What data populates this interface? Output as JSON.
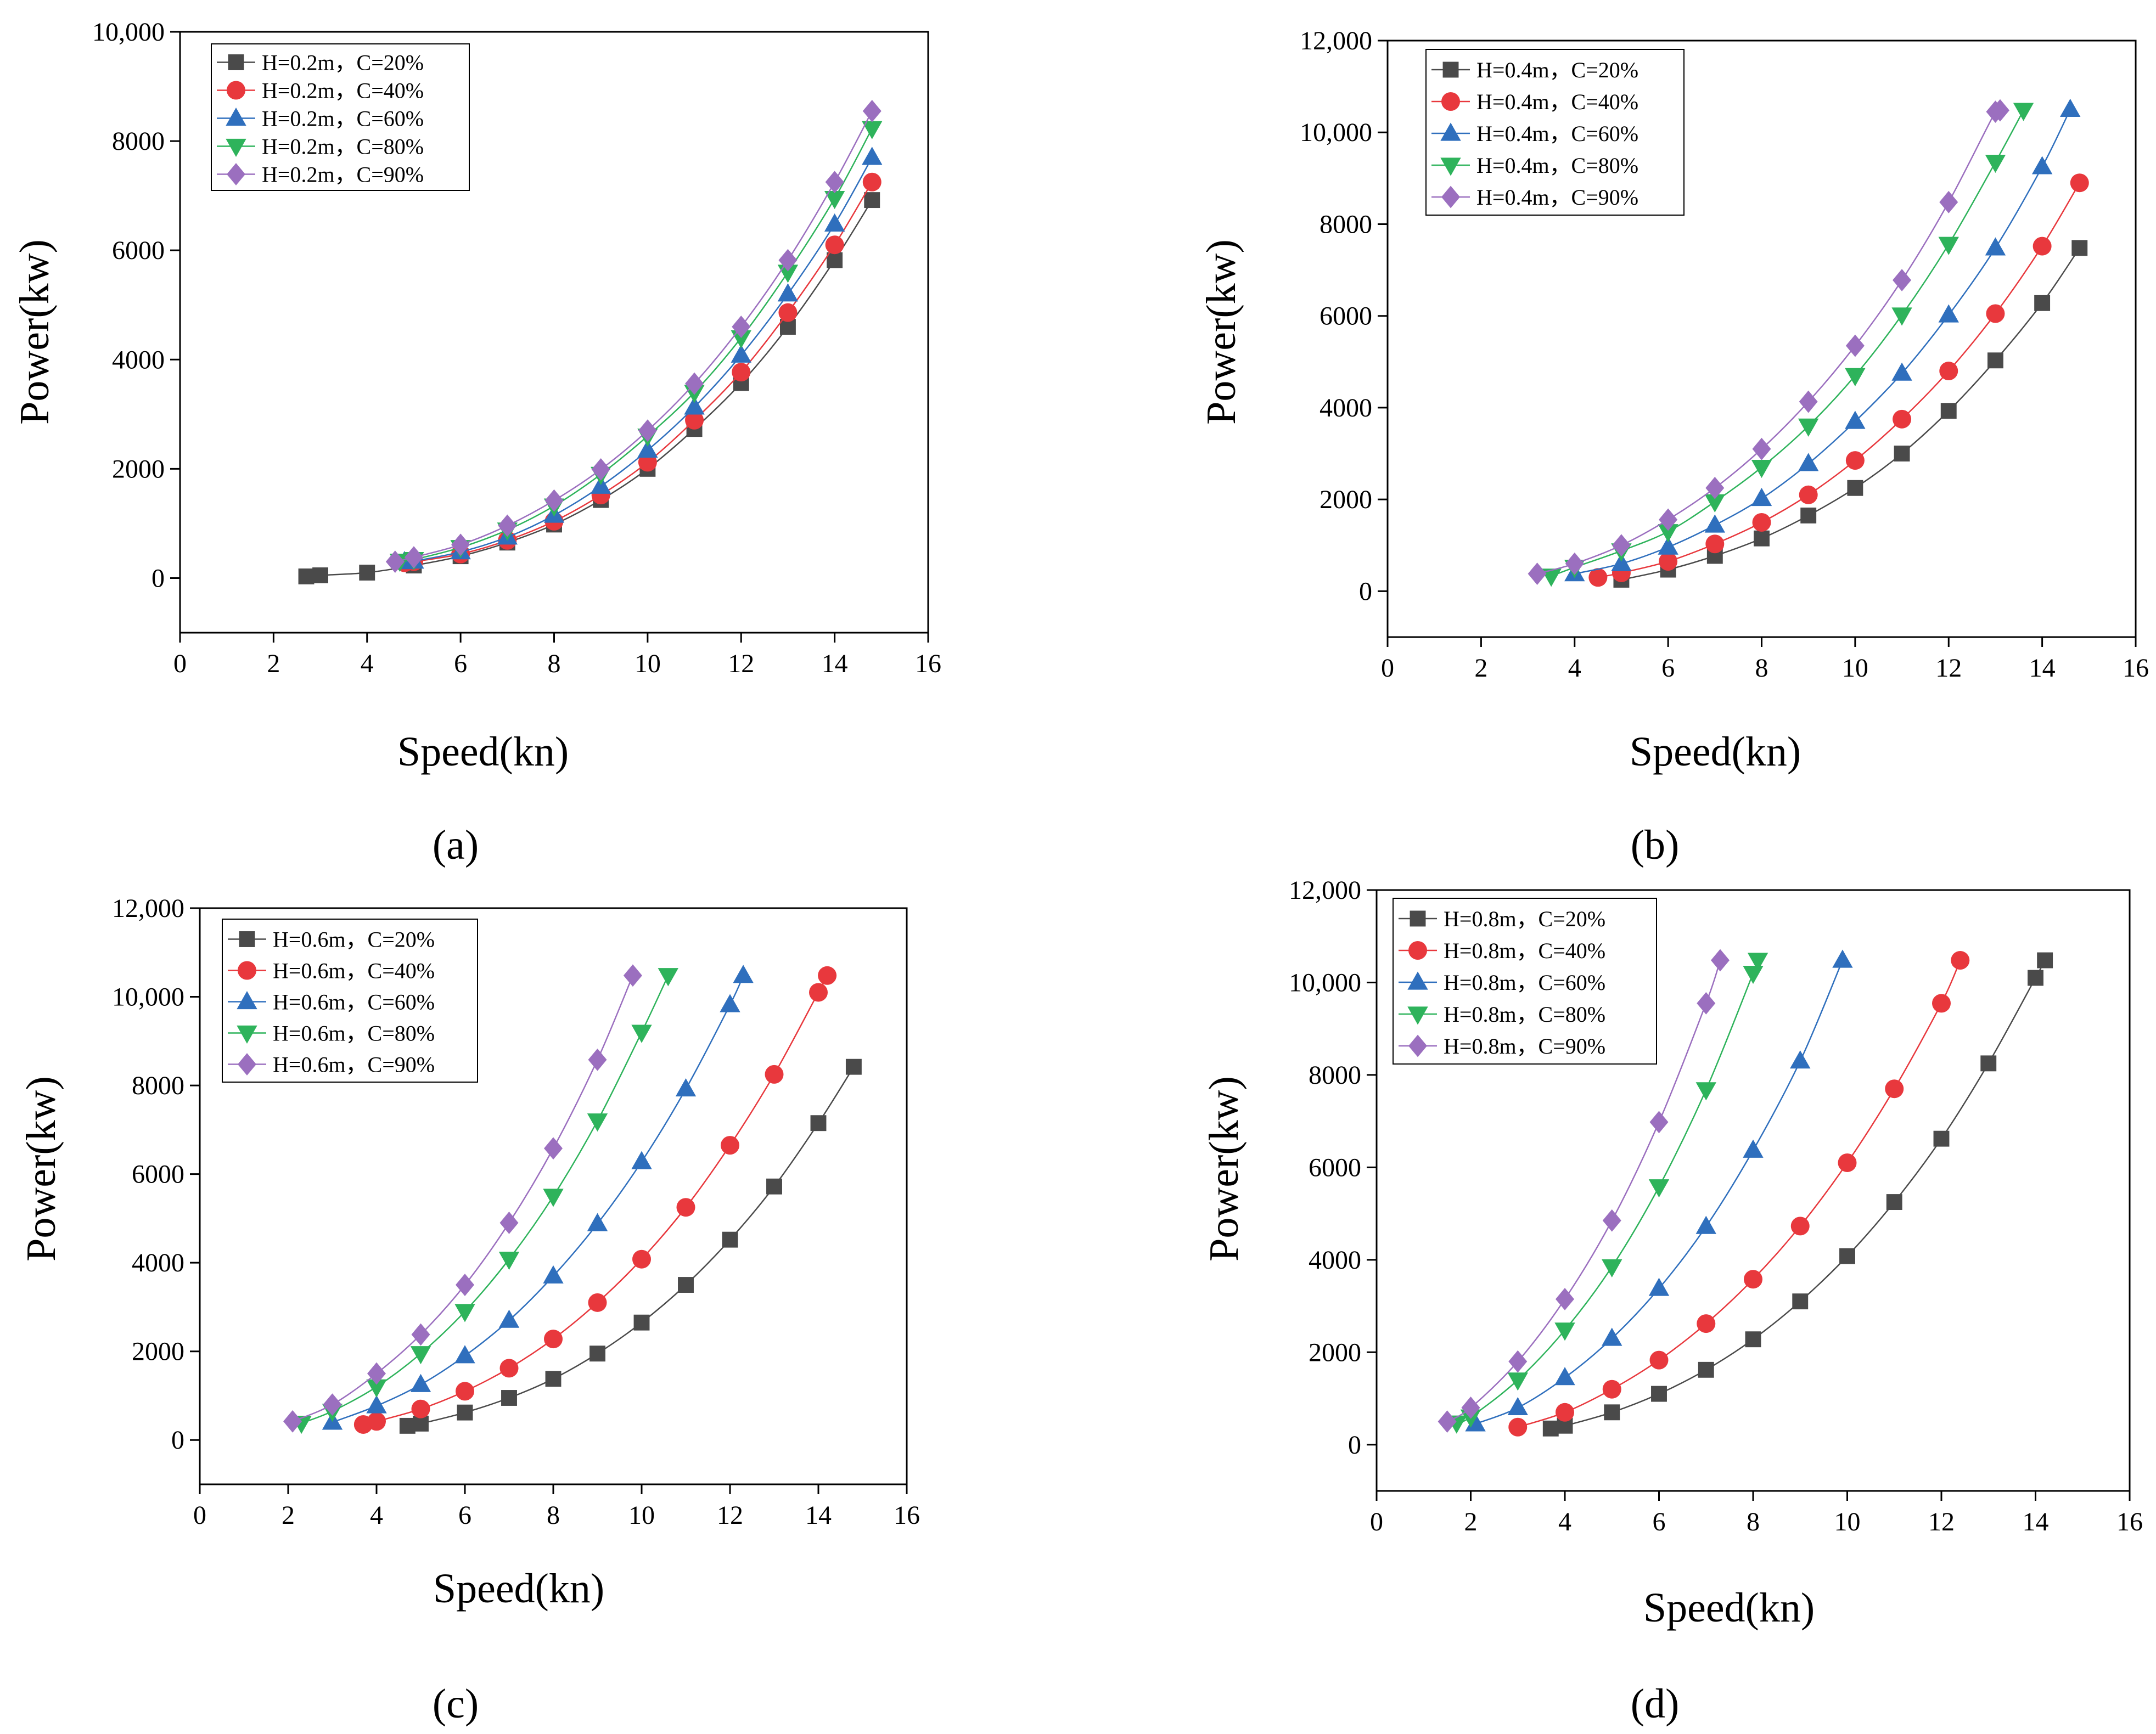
{
  "figure": {
    "colors": {
      "C=20%": "#4a4a4a",
      "C=40%": "#e8383d",
      "C=60%": "#2f6fbd",
      "C=80%": "#2eb35b",
      "C=90%": "#9b6fbf"
    },
    "markers": [
      "square",
      "circle",
      "triangle-up",
      "triangle-down",
      "diamond"
    ]
  },
  "chart_data": [
    {
      "type": "line",
      "caption": "(a)",
      "xlabel": "Speed(kn)",
      "ylabel": "Power(kw)",
      "xlim": [
        0,
        16
      ],
      "ylim": [
        -1000,
        10000
      ],
      "xticks": [
        0,
        2,
        4,
        6,
        8,
        10,
        12,
        14,
        16
      ],
      "yticks": [
        0,
        2000,
        4000,
        6000,
        8000,
        10000
      ],
      "ytick_labels": [
        "0",
        "2000",
        "4000",
        "6000",
        "8000",
        "10,000"
      ],
      "legend_position": "top-left",
      "series": [
        {
          "name": "H=0.2m，C=20%",
          "x": [
            2.7,
            3,
            4,
            5,
            6,
            7,
            8,
            9,
            10,
            11,
            12,
            13,
            14,
            14.8
          ],
          "y": [
            30,
            50,
            100,
            230,
            400,
            650,
            980,
            1430,
            2000,
            2730,
            3570,
            4600,
            5820,
            6920
          ]
        },
        {
          "name": "H=0.2m，C=40%",
          "x": [
            4.8,
            5,
            6,
            7,
            8,
            9,
            10,
            11,
            12,
            13,
            14,
            14.8
          ],
          "y": [
            280,
            300,
            440,
            690,
            1040,
            1520,
            2120,
            2890,
            3770,
            4860,
            6100,
            7250
          ]
        },
        {
          "name": "H=0.2m，C=60%",
          "x": [
            4.8,
            5,
            6,
            7,
            8,
            9,
            10,
            11,
            12,
            13,
            14,
            14.8
          ],
          "y": [
            300,
            310,
            480,
            750,
            1150,
            1680,
            2340,
            3130,
            4080,
            5200,
            6480,
            7700
          ]
        },
        {
          "name": "H=0.2m，C=80%",
          "x": [
            4.7,
            5,
            6,
            7,
            8,
            9,
            10,
            11,
            12,
            13,
            14,
            14.8
          ],
          "y": [
            310,
            340,
            560,
            880,
            1320,
            1900,
            2600,
            3400,
            4400,
            5600,
            6950,
            8230
          ]
        },
        {
          "name": "H=0.2m，C=90%",
          "x": [
            4.6,
            5,
            6,
            7,
            8,
            9,
            10,
            11,
            12,
            13,
            14,
            14.8
          ],
          "y": [
            300,
            380,
            610,
            960,
            1420,
            1990,
            2700,
            3560,
            4600,
            5820,
            7250,
            8550
          ]
        }
      ]
    },
    {
      "type": "line",
      "caption": "(b)",
      "xlabel": "Speed(kn)",
      "ylabel": "Power(kw)",
      "xlim": [
        0,
        16
      ],
      "ylim": [
        -1000,
        12000
      ],
      "xticks": [
        0,
        2,
        4,
        6,
        8,
        10,
        12,
        14,
        16
      ],
      "yticks": [
        0,
        2000,
        4000,
        6000,
        8000,
        10000,
        12000
      ],
      "ytick_labels": [
        "0",
        "2000",
        "4000",
        "6000",
        "8000",
        "10,000",
        "12,000"
      ],
      "legend_position": "top-left",
      "series": [
        {
          "name": "H=0.4m，C=20%",
          "x": [
            5,
            6,
            7,
            8,
            9,
            10,
            11,
            12,
            13,
            14,
            14.8
          ],
          "y": [
            250,
            470,
            770,
            1150,
            1650,
            2250,
            3000,
            3930,
            5030,
            6280,
            7480
          ]
        },
        {
          "name": "H=0.4m，C=40%",
          "x": [
            4.5,
            5,
            6,
            7,
            8,
            9,
            10,
            11,
            12,
            13,
            14,
            14.8
          ],
          "y": [
            300,
            400,
            650,
            1030,
            1500,
            2100,
            2850,
            3750,
            4800,
            6050,
            7520,
            8900
          ]
        },
        {
          "name": "H=0.4m，C=60%",
          "x": [
            4,
            5,
            6,
            7,
            8,
            9,
            10,
            11,
            12,
            13,
            14,
            14.6
          ],
          "y": [
            380,
            600,
            960,
            1440,
            2020,
            2780,
            3700,
            4750,
            6020,
            7480,
            9250,
            10500
          ]
        },
        {
          "name": "H=0.4m，C=80%",
          "x": [
            3.5,
            4,
            5,
            6,
            7,
            8,
            9,
            10,
            11,
            12,
            13,
            13.6
          ],
          "y": [
            330,
            520,
            880,
            1300,
            1950,
            2700,
            3600,
            4700,
            6020,
            7560,
            9350,
            10480
          ]
        },
        {
          "name": "H=0.4m，C=90%",
          "x": [
            3.2,
            4,
            5,
            6,
            7,
            8,
            9,
            10,
            11,
            12,
            13,
            13.1
          ],
          "y": [
            380,
            600,
            1000,
            1560,
            2250,
            3100,
            4130,
            5350,
            6780,
            8480,
            10450,
            10480
          ]
        }
      ]
    },
    {
      "type": "line",
      "caption": "(c)",
      "xlabel": "Speed(kn)",
      "ylabel": "Power(kw)",
      "xlim": [
        0,
        16
      ],
      "ylim": [
        -1000,
        12000
      ],
      "xticks": [
        0,
        2,
        4,
        6,
        8,
        10,
        12,
        14,
        16
      ],
      "yticks": [
        0,
        2000,
        4000,
        6000,
        8000,
        10000,
        12000
      ],
      "ytick_labels": [
        "0",
        "2000",
        "4000",
        "6000",
        "8000",
        "10,000",
        "12,000"
      ],
      "legend_position": "top-left",
      "series": [
        {
          "name": "H=0.6m，C=20%",
          "x": [
            4.7,
            5,
            6,
            7,
            8,
            9,
            10,
            11,
            12,
            13,
            14,
            14.8
          ],
          "y": [
            320,
            370,
            620,
            950,
            1380,
            1950,
            2650,
            3500,
            4520,
            5720,
            7150,
            8420
          ]
        },
        {
          "name": "H=0.6m，C=40%",
          "x": [
            3.7,
            4,
            5,
            6,
            7,
            8,
            9,
            10,
            11,
            12,
            13,
            14,
            14.2
          ],
          "y": [
            350,
            420,
            700,
            1100,
            1620,
            2280,
            3100,
            4080,
            5250,
            6650,
            8250,
            10100,
            10480
          ]
        },
        {
          "name": "H=0.6m，C=60%",
          "x": [
            3,
            4,
            5,
            6,
            7,
            8,
            9,
            10,
            11,
            12,
            12.3
          ],
          "y": [
            400,
            770,
            1250,
            1900,
            2700,
            3700,
            4880,
            6280,
            7920,
            9820,
            10480
          ]
        },
        {
          "name": "H=0.6m，C=80%",
          "x": [
            2.3,
            3,
            4,
            5,
            6,
            7,
            8,
            9,
            10,
            10.6
          ],
          "y": [
            380,
            650,
            1200,
            1950,
            2900,
            4080,
            5500,
            7200,
            9200,
            10480
          ]
        },
        {
          "name": "H=0.6m，C=90%",
          "x": [
            2.1,
            3,
            4,
            5,
            6,
            7,
            8,
            9,
            9.8
          ],
          "y": [
            420,
            800,
            1500,
            2380,
            3500,
            4900,
            6580,
            8580,
            10480
          ]
        }
      ]
    },
    {
      "type": "line",
      "caption": "(d)",
      "xlabel": "Speed(kn)",
      "ylabel": "Power(kw)",
      "xlim": [
        0,
        16
      ],
      "ylim": [
        -1000,
        12000
      ],
      "xticks": [
        0,
        2,
        4,
        6,
        8,
        10,
        12,
        14,
        16
      ],
      "yticks": [
        0,
        2000,
        4000,
        6000,
        8000,
        10000,
        12000
      ],
      "ytick_labels": [
        "0",
        "2000",
        "4000",
        "6000",
        "8000",
        "10,000",
        "12,000"
      ],
      "legend_position": "top-left",
      "series": [
        {
          "name": "H=0.8m，C=20%",
          "x": [
            3.7,
            4,
            5,
            6,
            7,
            8,
            9,
            10,
            11,
            12,
            13,
            14,
            14.2
          ],
          "y": [
            350,
            410,
            700,
            1100,
            1620,
            2280,
            3100,
            4080,
            5250,
            6620,
            8250,
            10100,
            10480
          ]
        },
        {
          "name": "H=0.8m，C=40%",
          "x": [
            3,
            4,
            5,
            6,
            7,
            8,
            9,
            10,
            11,
            12,
            12.4
          ],
          "y": [
            380,
            700,
            1200,
            1830,
            2620,
            3580,
            4730,
            6100,
            7700,
            9550,
            10480
          ]
        },
        {
          "name": "H=0.8m，C=60%",
          "x": [
            2.1,
            3,
            4,
            5,
            6,
            7,
            8,
            9,
            9.9
          ],
          "y": [
            450,
            800,
            1450,
            2300,
            3380,
            4720,
            6370,
            8300,
            10480
          ]
        },
        {
          "name": "H=0.8m，C=80%",
          "x": [
            1.7,
            2,
            3,
            4,
            5,
            6,
            7,
            8,
            8.1
          ],
          "y": [
            470,
            600,
            1400,
            2480,
            3850,
            5580,
            7680,
            10200,
            10480
          ]
        },
        {
          "name": "H=0.8m，C=90%",
          "x": [
            1.5,
            2,
            3,
            4,
            5,
            6,
            7,
            7.3
          ],
          "y": [
            500,
            800,
            1800,
            3150,
            4850,
            6980,
            9550,
            10480
          ]
        }
      ]
    }
  ]
}
